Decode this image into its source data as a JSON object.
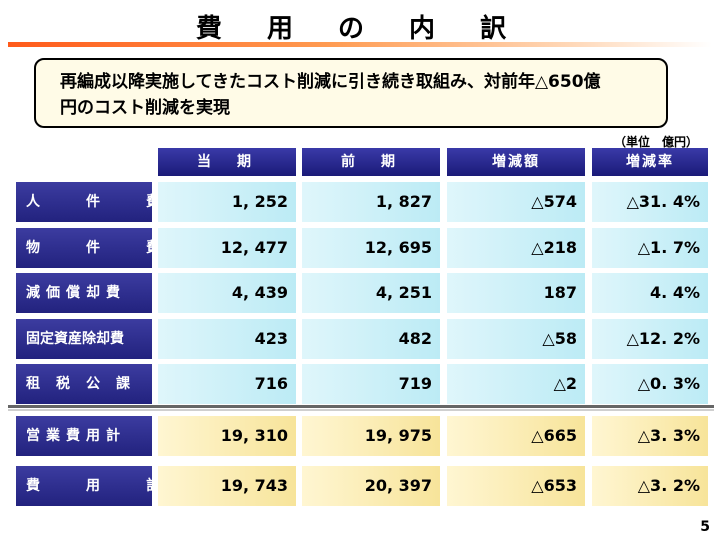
{
  "title": "費 用 の 内 訳",
  "callout": {
    "line1": "再編成以降実施してきたコスト削減に引き続き取組み、対前年△650億",
    "line2": "円のコスト削減を実現"
  },
  "unit": "（単位　億円）",
  "columns": [
    "当　期",
    "前　期",
    "増減額",
    "増減率"
  ],
  "rows": [
    {
      "label": "人　件　費",
      "values": [
        "1, 252",
        "1, 827",
        "△574",
        "△31. 4%"
      ]
    },
    {
      "label": "物　件　費",
      "values": [
        "12, 477",
        "12, 695",
        "△218",
        "△1. 7%"
      ]
    },
    {
      "label": "減価償却費",
      "values": [
        "4, 439",
        "4, 251",
        "187",
        "4. 4%"
      ]
    },
    {
      "label": "固定資産除却費",
      "values": [
        "423",
        "482",
        "△58",
        "△12. 2%"
      ]
    },
    {
      "label": "租税公課",
      "values": [
        "716",
        "719",
        "△2",
        "△0. 3%"
      ]
    }
  ],
  "totals": [
    {
      "label": "営業費用計",
      "values": [
        "19, 310",
        "19, 975",
        "△665",
        "△3. 3%"
      ]
    },
    {
      "label": "費　用　計",
      "values": [
        "19, 743",
        "20, 397",
        "△653",
        "△3. 2%"
      ]
    }
  ],
  "page_number": "5",
  "colors": {
    "header_bg": "#1a1a78",
    "row_bg": "#bcebf5",
    "total_bg": "#f7e49a",
    "rule": "#ff5a1a"
  }
}
